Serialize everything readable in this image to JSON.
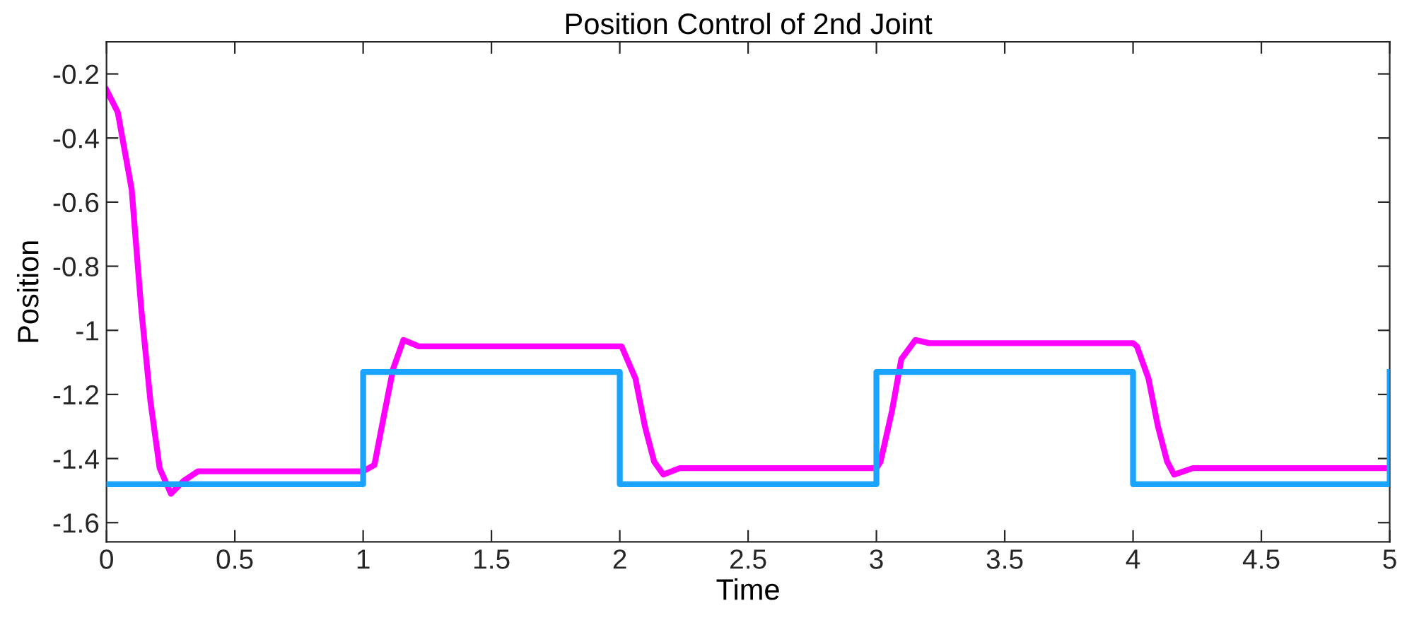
{
  "chart_data": {
    "type": "line",
    "title": "Position Control of 2nd Joint",
    "xlabel": "Time",
    "ylabel": "Position",
    "xlim": [
      0,
      5
    ],
    "ylim": [
      -1.66,
      -0.1
    ],
    "xticks": [
      0,
      0.5,
      1,
      1.5,
      2,
      2.5,
      3,
      3.5,
      4,
      4.5,
      5
    ],
    "yticks": [
      -1.6,
      -1.4,
      -1.2,
      -1,
      -0.8,
      -0.6,
      -0.4,
      -0.2
    ],
    "grid": false,
    "legend": false,
    "marker": "none",
    "line_style": "solid",
    "series": [
      {
        "color": "#ff00ff",
        "x": [
          0,
          0.044,
          0.098,
          0.135,
          0.171,
          0.207,
          0.251,
          0.3,
          0.356,
          1.0,
          1.044,
          1.08,
          1.117,
          1.157,
          1.217,
          2.007,
          2.061,
          2.098,
          2.134,
          2.17,
          2.234,
          3.0,
          3.016,
          3.061,
          3.097,
          3.152,
          3.206,
          4.0,
          4.015,
          4.06,
          4.097,
          4.133,
          4.16,
          4.233,
          5.0
        ],
        "values": [
          -0.25,
          -0.32,
          -0.56,
          -0.93,
          -1.22,
          -1.43,
          -1.51,
          -1.47,
          -1.44,
          -1.44,
          -1.42,
          -1.27,
          -1.12,
          -1.03,
          -1.05,
          -1.05,
          -1.15,
          -1.3,
          -1.41,
          -1.45,
          -1.43,
          -1.43,
          -1.41,
          -1.25,
          -1.09,
          -1.03,
          -1.04,
          -1.04,
          -1.05,
          -1.15,
          -1.3,
          -1.41,
          -1.45,
          -1.43,
          -1.43
        ]
      },
      {
        "color": "#1aa3ff",
        "x": [
          0,
          1,
          1,
          2,
          2,
          3,
          3,
          4,
          4,
          5,
          5
        ],
        "values": [
          -1.48,
          -1.48,
          -1.13,
          -1.13,
          -1.48,
          -1.48,
          -1.13,
          -1.13,
          -1.48,
          -1.48,
          -1.13
        ]
      }
    ]
  }
}
